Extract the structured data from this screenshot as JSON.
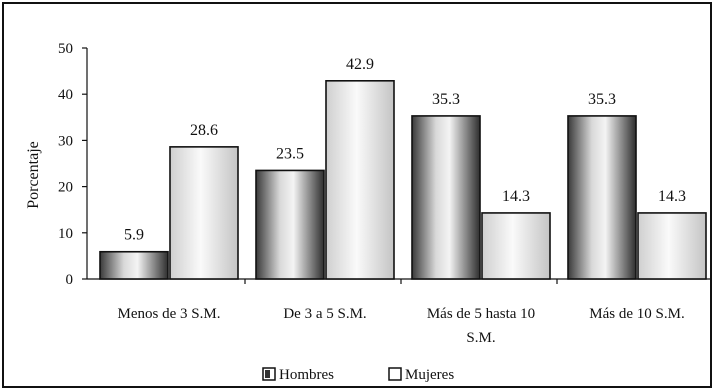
{
  "chart_data": {
    "type": "bar",
    "ylabel": "Porcentaje",
    "ylim": [
      0,
      50
    ],
    "yticks": [
      "0",
      "10",
      "20",
      "30",
      "40",
      "50"
    ],
    "categories": [
      [
        "Menos de 3 S.M."
      ],
      [
        "De 3 a 5 S.M."
      ],
      [
        "Más de 5 hasta 10",
        "S.M."
      ],
      [
        "Más de 10 S.M."
      ]
    ],
    "series": [
      {
        "name": "Hombres",
        "values": [
          5.9,
          23.5,
          35.3,
          35.3
        ],
        "labels": [
          "5.9",
          "23.5",
          "35.3",
          "35.3"
        ]
      },
      {
        "name": "Mujeres",
        "values": [
          28.6,
          42.9,
          14.3,
          14.3
        ],
        "labels": [
          "28.6",
          "42.9",
          "14.3",
          "14.3"
        ]
      }
    ],
    "grid": false,
    "legend_position": "bottom"
  }
}
